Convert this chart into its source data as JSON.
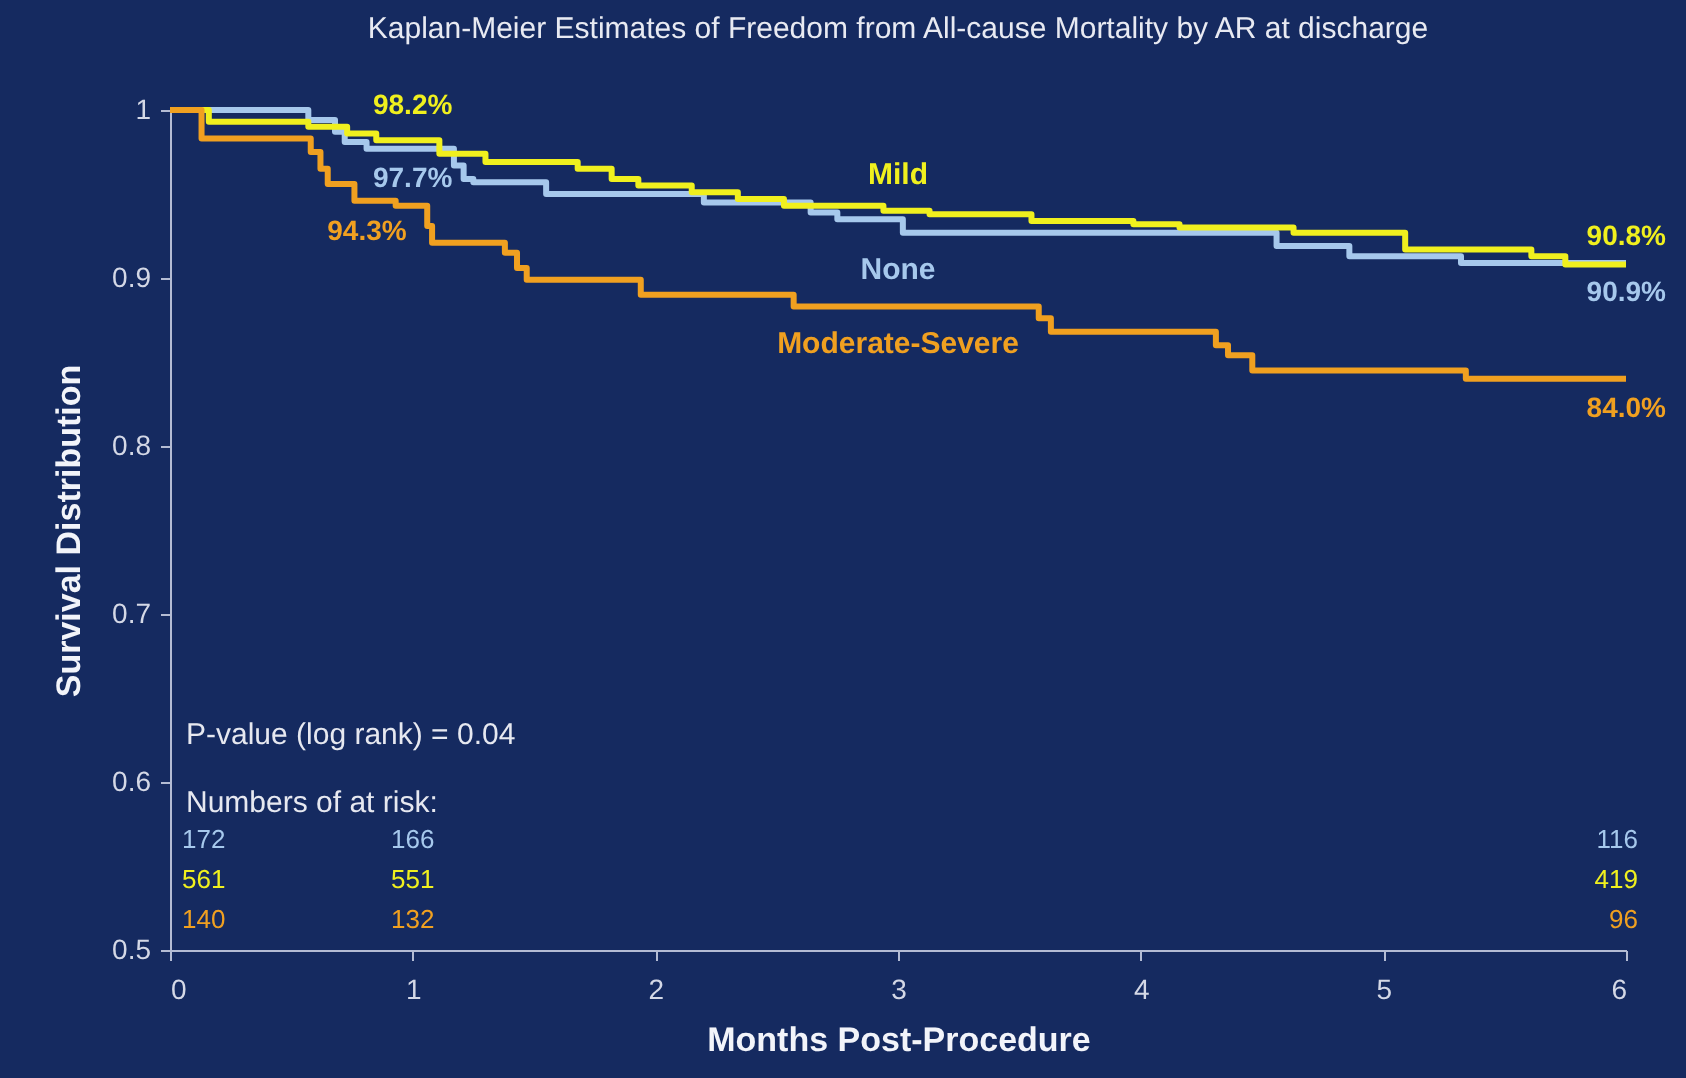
{
  "chart_data": {
    "type": "step",
    "title": "Kaplan-Meier Estimates of Freedom from All-cause Mortality by AR at discharge",
    "xlabel": "Months Post-Procedure",
    "ylabel": "Survival Distribution",
    "xlim": [
      0,
      6
    ],
    "xticks": [
      0,
      1,
      2,
      3,
      4,
      5,
      6
    ],
    "ylim": [
      0.5,
      1
    ],
    "yticks": [
      0.5,
      0.6,
      0.7,
      0.8,
      0.9,
      1
    ],
    "series": [
      {
        "name": "None",
        "color": "#a6c8ec",
        "x": [
          0,
          0.57,
          0.68,
          0.72,
          0.81,
          1,
          1.17,
          1.21,
          1.25,
          1.55,
          2.2,
          2.64,
          2.75,
          3.02,
          4.56,
          4.86,
          5.32,
          6
        ],
        "values": [
          1,
          0.994,
          0.987,
          0.981,
          0.977,
          0.977,
          0.967,
          0.959,
          0.957,
          0.95,
          0.945,
          0.939,
          0.935,
          0.927,
          0.919,
          0.913,
          0.909,
          0.909
        ],
        "value_labels": [
          null,
          null,
          null,
          null,
          null,
          "97.7%",
          null,
          null,
          null,
          null,
          null,
          null,
          null,
          null,
          null,
          null,
          null,
          "90.9%"
        ]
      },
      {
        "name": "Mild",
        "color": "#f0f01e",
        "x": [
          0,
          0.16,
          0.57,
          0.73,
          0.85,
          1,
          1.11,
          1.3,
          1.68,
          1.82,
          1.93,
          2.15,
          2.34,
          2.53,
          2.94,
          3.13,
          3.55,
          3.97,
          4.16,
          4.63,
          5.09,
          5.61,
          5.75,
          6
        ],
        "values": [
          1,
          0.993,
          0.99,
          0.986,
          0.982,
          0.982,
          0.974,
          0.969,
          0.965,
          0.959,
          0.955,
          0.951,
          0.947,
          0.943,
          0.94,
          0.938,
          0.934,
          0.932,
          0.93,
          0.927,
          0.917,
          0.913,
          0.908,
          0.908
        ],
        "value_labels": [
          null,
          null,
          null,
          null,
          null,
          "98.2%",
          null,
          null,
          null,
          null,
          null,
          null,
          null,
          null,
          null,
          null,
          null,
          null,
          null,
          null,
          null,
          null,
          null,
          "90.8%"
        ]
      },
      {
        "name": "Moderate-Severe",
        "color": "#f0a020",
        "x": [
          0,
          0.13,
          0.58,
          0.62,
          0.65,
          0.76,
          0.93,
          1,
          1.06,
          1.08,
          1.38,
          1.43,
          1.47,
          1.94,
          2.57,
          3.58,
          3.63,
          4.31,
          4.36,
          4.46,
          5.34,
          6
        ],
        "values": [
          1,
          0.983,
          0.975,
          0.965,
          0.956,
          0.946,
          0.943,
          0.943,
          0.931,
          0.921,
          0.915,
          0.906,
          0.899,
          0.89,
          0.883,
          0.876,
          0.868,
          0.86,
          0.854,
          0.845,
          0.84,
          0.84
        ],
        "value_labels": [
          null,
          null,
          null,
          null,
          null,
          null,
          null,
          "94.3%",
          null,
          null,
          null,
          null,
          null,
          null,
          null,
          null,
          null,
          null,
          null,
          null,
          null,
          "84.0%"
        ]
      }
    ],
    "annotations": [
      "P-value (log rank) = 0.04",
      "Numbers of at risk:",
      "172",
      "166",
      "116",
      "561",
      "551",
      "419",
      "140",
      "132",
      "96"
    ]
  }
}
